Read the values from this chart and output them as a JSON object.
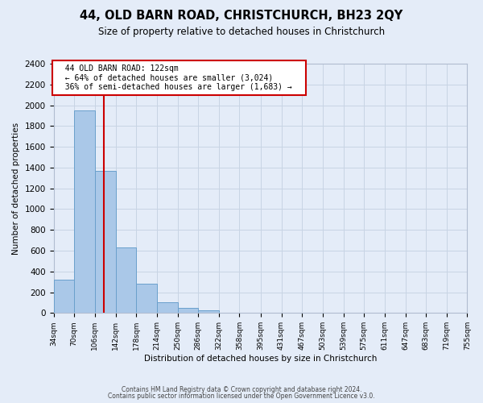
{
  "title": "44, OLD BARN ROAD, CHRISTCHURCH, BH23 2QY",
  "subtitle": "Size of property relative to detached houses in Christchurch",
  "xlabel": "Distribution of detached houses by size in Christchurch",
  "ylabel": "Number of detached properties",
  "bar_edges": [
    34,
    70,
    106,
    142,
    178,
    214,
    250,
    286,
    322,
    358,
    395,
    431,
    467,
    503,
    539,
    575,
    611,
    647,
    683,
    719,
    755
  ],
  "bar_heights": [
    320,
    1950,
    1370,
    630,
    280,
    100,
    50,
    25,
    0,
    0,
    0,
    0,
    0,
    0,
    0,
    0,
    0,
    0,
    0,
    0
  ],
  "property_size": 122,
  "annotation_title": "44 OLD BARN ROAD: 122sqm",
  "annotation_line1": "← 64% of detached houses are smaller (3,024)",
  "annotation_line2": "36% of semi-detached houses are larger (1,683) →",
  "bar_color": "#aac8e8",
  "bar_edge_color": "#6aA0cc",
  "red_line_color": "#cc0000",
  "annotation_box_color": "#ffffff",
  "annotation_box_edge": "#cc0000",
  "grid_color": "#c8d4e4",
  "background_color": "#e4ecf8",
  "ylim": [
    0,
    2400
  ],
  "yticks": [
    0,
    200,
    400,
    600,
    800,
    1000,
    1200,
    1400,
    1600,
    1800,
    2000,
    2200,
    2400
  ],
  "footnote1": "Contains HM Land Registry data © Crown copyright and database right 2024.",
  "footnote2": "Contains public sector information licensed under the Open Government Licence v3.0."
}
